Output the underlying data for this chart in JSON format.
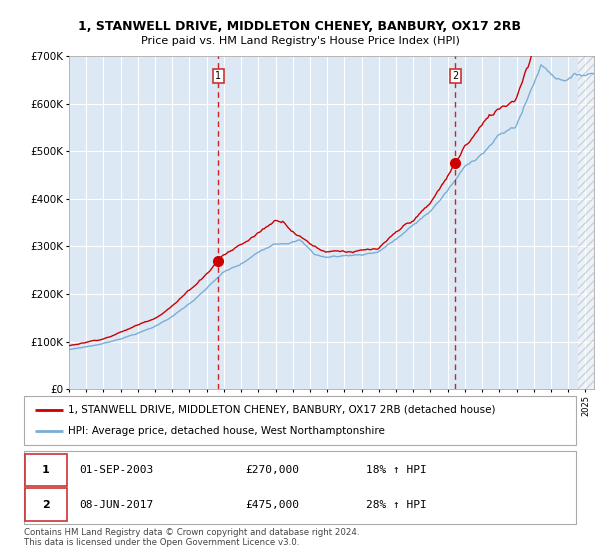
{
  "title_line1": "1, STANWELL DRIVE, MIDDLETON CHENEY, BANBURY, OX17 2RB",
  "title_line2": "Price paid vs. HM Land Registry's House Price Index (HPI)",
  "legend_label_red": "1, STANWELL DRIVE, MIDDLETON CHENEY, BANBURY, OX17 2RB (detached house)",
  "legend_label_blue": "HPI: Average price, detached house, West Northamptonshire",
  "transaction1_date": "01-SEP-2003",
  "transaction1_price": "£270,000",
  "transaction1_hpi": "18% ↑ HPI",
  "transaction2_date": "08-JUN-2017",
  "transaction2_price": "£475,000",
  "transaction2_hpi": "28% ↑ HPI",
  "footer": "Contains HM Land Registry data © Crown copyright and database right 2024.\nThis data is licensed under the Open Government Licence v3.0.",
  "bg_color": "#dce9f5",
  "red_color": "#cc0000",
  "blue_color": "#7aaed6",
  "grid_color": "#ffffff",
  "box_edge_color": "#cc3333",
  "transaction1_x": 2003.67,
  "transaction1_y": 270000,
  "transaction2_x": 2017.44,
  "transaction2_y": 475000,
  "yticks": [
    0,
    100000,
    200000,
    300000,
    400000,
    500000,
    600000,
    700000
  ],
  "ytick_labels": [
    "£0",
    "£100K",
    "£200K",
    "£300K",
    "£400K",
    "£500K",
    "£600K",
    "£700K"
  ],
  "y_min": 0,
  "y_max": 700000,
  "x_min": 1995,
  "x_max": 2025.5
}
